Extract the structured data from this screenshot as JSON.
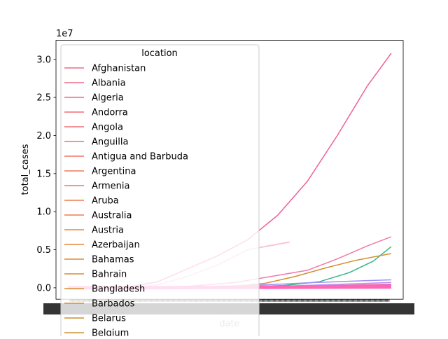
{
  "chart_data": {
    "type": "line",
    "xlabel": "date",
    "ylabel": "total_cases",
    "y_offset_label": "1e7",
    "ylim": [
      -1500000,
      32500000
    ],
    "y_ticks": [
      0,
      5000000,
      10000000,
      15000000,
      20000000,
      25000000,
      30000000
    ],
    "y_tick_labels": [
      "0.0",
      "0.5",
      "1.0",
      "1.5",
      "2.0",
      "2.5",
      "3.0"
    ],
    "x_count": 400,
    "legend_title": "location",
    "legend_entries": [
      {
        "name": "Afghanistan",
        "color": "#ee6b8e"
      },
      {
        "name": "Albania",
        "color": "#ef6b86"
      },
      {
        "name": "Algeria",
        "color": "#ef6c80"
      },
      {
        "name": "Andorra",
        "color": "#f06d79"
      },
      {
        "name": "Angola",
        "color": "#f06e72"
      },
      {
        "name": "Anguilla",
        "color": "#f0706b"
      },
      {
        "name": "Antigua and Barbuda",
        "color": "#f07364"
      },
      {
        "name": "Argentina",
        "color": "#f0765c"
      },
      {
        "name": "Armenia",
        "color": "#f07955"
      },
      {
        "name": "Aruba",
        "color": "#ef7c4c"
      },
      {
        "name": "Australia",
        "color": "#ee7f44"
      },
      {
        "name": "Austria",
        "color": "#ec823b"
      },
      {
        "name": "Azerbaijan",
        "color": "#e98532"
      },
      {
        "name": "Bahamas",
        "color": "#e38a30"
      },
      {
        "name": "Bahrain",
        "color": "#dc8c30"
      },
      {
        "name": "Bangladesh",
        "color": "#d88e30"
      },
      {
        "name": "Barbados",
        "color": "#d28f30"
      },
      {
        "name": "Belarus",
        "color": "#cd9130"
      },
      {
        "name": "Belgium",
        "color": "#c99330"
      }
    ],
    "series": [
      {
        "color": "#ee5f9a",
        "width": 1.5,
        "values": [
          [
            0,
            0
          ],
          [
            100,
            100000
          ],
          [
            150,
            800000
          ],
          [
            200,
            2500000
          ],
          [
            250,
            4200000
          ],
          [
            300,
            6300000
          ],
          [
            350,
            9500000
          ],
          [
            400,
            14000000
          ],
          [
            450,
            20000000
          ],
          [
            500,
            26500000
          ],
          [
            540,
            30800000
          ]
        ]
      },
      {
        "color": "#f9c5d6",
        "width": 2,
        "values": [
          [
            0,
            0
          ],
          [
            100,
            50000
          ],
          [
            150,
            400000
          ],
          [
            200,
            1500000
          ],
          [
            250,
            3000000
          ],
          [
            300,
            5000000
          ],
          [
            370,
            6000000
          ]
        ]
      },
      {
        "color": "#f07aa8",
        "width": 1.5,
        "values": [
          [
            0,
            0
          ],
          [
            100,
            30000
          ],
          [
            200,
            200000
          ],
          [
            280,
            700000
          ],
          [
            340,
            1500000
          ],
          [
            400,
            2300000
          ],
          [
            450,
            3800000
          ],
          [
            500,
            5500000
          ],
          [
            540,
            6700000
          ]
        ]
      },
      {
        "color": "#34b58a",
        "width": 1.5,
        "values": [
          [
            0,
            0
          ],
          [
            100,
            20000
          ],
          [
            200,
            60000
          ],
          [
            300,
            150000
          ],
          [
            360,
            300000
          ],
          [
            420,
            800000
          ],
          [
            470,
            2000000
          ],
          [
            510,
            3500000
          ],
          [
            540,
            5400000
          ]
        ]
      },
      {
        "color": "#d28f30",
        "width": 1.5,
        "values": [
          [
            0,
            0
          ],
          [
            100,
            30000
          ],
          [
            200,
            80000
          ],
          [
            280,
            200000
          ],
          [
            330,
            600000
          ],
          [
            380,
            1500000
          ],
          [
            430,
            2600000
          ],
          [
            480,
            3600000
          ],
          [
            540,
            4500000
          ]
        ]
      },
      {
        "color": "#a08ef5",
        "width": 1.5,
        "values": [
          [
            0,
            0
          ],
          [
            100,
            30000
          ],
          [
            200,
            100000
          ],
          [
            300,
            300000
          ],
          [
            360,
            500000
          ],
          [
            400,
            650000
          ],
          [
            450,
            800000
          ],
          [
            500,
            950000
          ],
          [
            540,
            1050000
          ]
        ]
      },
      {
        "color": "#b58ff0",
        "width": 1.5,
        "values": [
          [
            0,
            0
          ],
          [
            200,
            50000
          ],
          [
            350,
            200000
          ],
          [
            450,
            450000
          ],
          [
            540,
            700000
          ]
        ]
      },
      {
        "color": "#f270b0",
        "width": 2,
        "values": [
          [
            0,
            0
          ],
          [
            200,
            40000
          ],
          [
            350,
            150000
          ],
          [
            450,
            300000
          ],
          [
            540,
            450000
          ]
        ]
      },
      {
        "color": "#e060c0",
        "width": 1.5,
        "values": [
          [
            0,
            0
          ],
          [
            200,
            30000
          ],
          [
            350,
            120000
          ],
          [
            450,
            220000
          ],
          [
            540,
            350000
          ]
        ]
      },
      {
        "color": "#ff66b8",
        "width": 5,
        "values": [
          [
            0,
            0
          ],
          [
            540,
            120000
          ]
        ]
      }
    ]
  }
}
